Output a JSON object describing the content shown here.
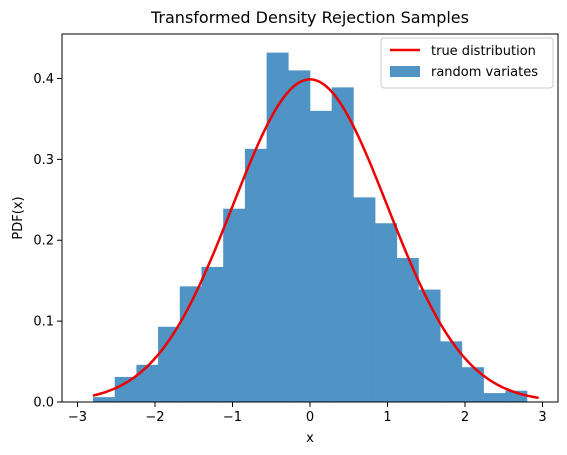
{
  "chart_data": {
    "type": "bar",
    "title": "Transformed Density Rejection Samples",
    "xlabel": "x",
    "ylabel": "PDF(x)",
    "xlim": [
      -3.2,
      3.2
    ],
    "ylim": [
      0,
      0.455
    ],
    "xticks": [
      -3,
      -2,
      -1,
      0,
      1,
      2,
      3
    ],
    "xtick_labels": [
      "−3",
      "−2",
      "−1",
      "0",
      "1",
      "2",
      "3"
    ],
    "yticks": [
      0.0,
      0.1,
      0.2,
      0.3,
      0.4
    ],
    "ytick_labels": [
      "0.0",
      "0.1",
      "0.2",
      "0.3",
      "0.4"
    ],
    "grid": false,
    "legend_position": "top-right",
    "series": [
      {
        "name": "random variates",
        "kind": "histogram",
        "color": "#4f94c5",
        "bin_edges": [
          -2.8,
          -2.52,
          -2.24,
          -1.96,
          -1.68,
          -1.4,
          -1.12,
          -0.84,
          -0.56,
          -0.28,
          0.0,
          0.28,
          0.56,
          0.84,
          1.12,
          1.4,
          1.68,
          1.96,
          2.24,
          2.52,
          2.8
        ],
        "values": [
          0.006,
          0.031,
          0.046,
          0.093,
          0.143,
          0.167,
          0.239,
          0.313,
          0.432,
          0.41,
          0.36,
          0.389,
          0.253,
          0.221,
          0.178,
          0.139,
          0.075,
          0.043,
          0.011,
          0.014
        ]
      },
      {
        "name": "true distribution",
        "kind": "line",
        "color": "#ee0000",
        "distribution": "standard normal",
        "x_range": [
          -2.8,
          2.95
        ]
      }
    ]
  }
}
